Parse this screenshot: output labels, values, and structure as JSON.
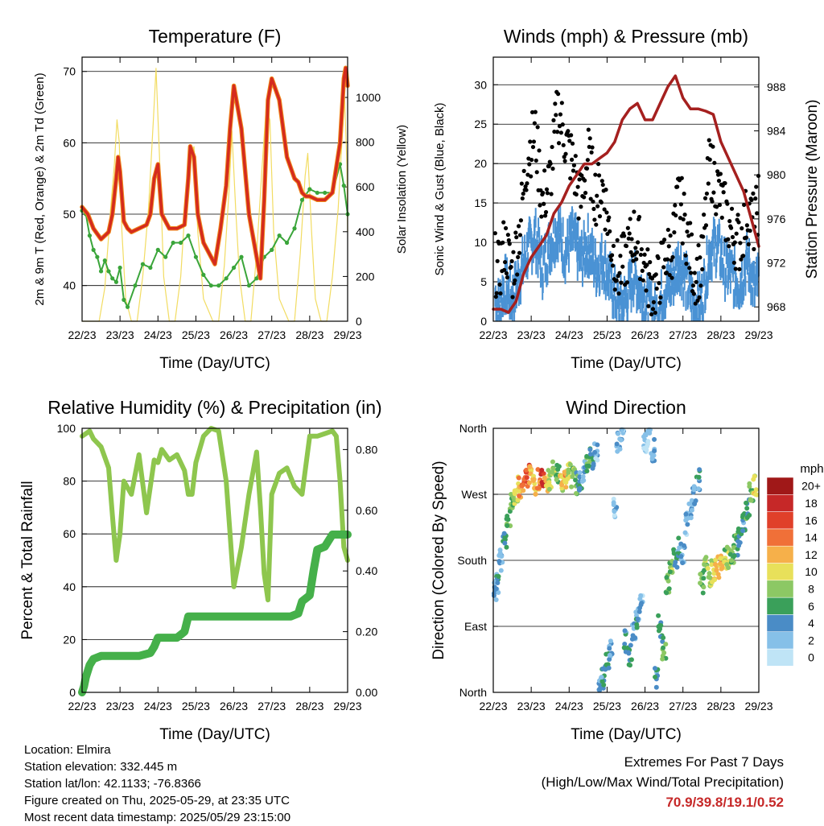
{
  "chart_data": [
    {
      "type": "line",
      "title": "Temperature (F)",
      "xlabel": "Time (Day/UTC)",
      "ylabel_left": "2m & 9m T (Red, Orange) & 2m Td (Green)",
      "ylabel_right": "Solar Insolation (Yellow)",
      "x_ticks": [
        "22/23",
        "23/23",
        "24/23",
        "25/23",
        "26/23",
        "27/23",
        "28/23",
        "29/23"
      ],
      "xlim": [
        0,
        7
      ],
      "ylim": [
        35,
        72
      ],
      "y_ticks": [
        40,
        50,
        60,
        70
      ],
      "y2lim": [
        0,
        1180
      ],
      "y2_ticks": [
        0,
        200,
        400,
        600,
        800,
        1000
      ],
      "grid": true,
      "colors": {
        "t2m": "#d42b1e",
        "t9m": "#f08a1c",
        "td": "#3aa53a",
        "solar": "#f2dc62"
      },
      "series": [
        {
          "key": "t2m",
          "x": [
            0,
            0.15,
            0.3,
            0.5,
            0.7,
            0.8,
            0.9,
            0.95,
            1,
            1.1,
            1.2,
            1.3,
            1.5,
            1.7,
            1.8,
            1.9,
            2,
            2.1,
            2.3,
            2.5,
            2.7,
            2.8,
            2.85,
            2.95,
            3.05,
            3.2,
            3.4,
            3.5,
            3.65,
            3.8,
            3.9,
            4,
            4.2,
            4.4,
            4.6,
            4.7,
            4.8,
            4.9,
            5,
            5.2,
            5.4,
            5.6,
            5.7,
            5.8,
            5.9,
            6,
            6.2,
            6.4,
            6.6,
            6.8,
            6.9,
            6.95,
            7
          ],
          "values": [
            51,
            50,
            48,
            46.5,
            47.5,
            50,
            55,
            58,
            56,
            49,
            48,
            47.5,
            48,
            48.5,
            50,
            55,
            57,
            50,
            48,
            48,
            48.5,
            55,
            59.5,
            58,
            50,
            46,
            44,
            43,
            48,
            54,
            62,
            68,
            62,
            50,
            44,
            41,
            52,
            66,
            69,
            66,
            58,
            55,
            54.5,
            53,
            52.5,
            52.5,
            52,
            52,
            53,
            60,
            69,
            70.5,
            68
          ]
        },
        {
          "key": "td",
          "x": [
            0,
            0.1,
            0.2,
            0.3,
            0.4,
            0.5,
            0.6,
            0.7,
            0.8,
            0.9,
            1,
            1.1,
            1.2,
            1.4,
            1.6,
            1.8,
            2,
            2.2,
            2.4,
            2.6,
            2.8,
            3,
            3.2,
            3.4,
            3.6,
            3.8,
            4,
            4.2,
            4.4,
            4.6,
            4.8,
            5,
            5.2,
            5.4,
            5.6,
            5.8,
            6,
            6.2,
            6.4,
            6.6,
            6.8,
            6.9,
            7
          ],
          "values": [
            50.5,
            50,
            47,
            45,
            44,
            42,
            43.5,
            42,
            41,
            40.5,
            42.5,
            38,
            37,
            40,
            43,
            42.5,
            45,
            44,
            46,
            46,
            47,
            44,
            41.5,
            40,
            40,
            41,
            42.5,
            44,
            40,
            41,
            44,
            45,
            47,
            46,
            48,
            52,
            53.5,
            53,
            53,
            53,
            57,
            54,
            50
          ]
        },
        {
          "key": "solar",
          "x": [
            0,
            0.45,
            0.6,
            0.75,
            0.85,
            0.92,
            0.98,
            1.05,
            1.15,
            1.3,
            1.45,
            1.6,
            1.75,
            1.88,
            1.95,
            2.05,
            2.15,
            2.3,
            2.45,
            2.6,
            2.75,
            2.85,
            2.95,
            3.05,
            3.2,
            3.45,
            3.6,
            3.75,
            3.88,
            3.95,
            4.05,
            4.15,
            4.3,
            4.45,
            4.6,
            4.75,
            4.85,
            4.95,
            5.05,
            5.2,
            5.45,
            5.6,
            5.75,
            5.88,
            5.95,
            6.05,
            6.15,
            6.3,
            6.45,
            6.6,
            6.75,
            6.85,
            6.92,
            6.98,
            7
          ],
          "values": [
            0,
            0,
            150,
            500,
            700,
            900,
            800,
            400,
            100,
            0,
            0,
            200,
            500,
            900,
            1130,
            700,
            200,
            0,
            0,
            200,
            600,
            750,
            780,
            400,
            100,
            0,
            0,
            250,
            600,
            850,
            500,
            200,
            0,
            0,
            300,
            700,
            950,
            900,
            400,
            100,
            0,
            0,
            300,
            650,
            750,
            400,
            100,
            0,
            0,
            200,
            500,
            800,
            1000,
            700,
            400
          ]
        }
      ]
    },
    {
      "type": "line",
      "title": "Winds (mph) & Pressure (mb)",
      "xlabel": "Time (Day/UTC)",
      "ylabel_left": "Sonic Wind & Gust (Blue, Black)",
      "ylabel_right": "Station Pressure (Maroon)",
      "x_ticks": [
        "22/23",
        "23/23",
        "24/23",
        "25/23",
        "26/23",
        "27/23",
        "28/23",
        "29/23"
      ],
      "xlim": [
        0,
        7
      ],
      "ylim": [
        0,
        33.5
      ],
      "y_ticks": [
        0,
        5,
        10,
        15,
        20,
        25,
        30
      ],
      "y2lim": [
        966.7,
        990.7
      ],
      "y2_ticks": [
        968,
        972,
        976,
        980,
        984,
        988
      ],
      "grid": true,
      "colors": {
        "wind": "#4a92d4",
        "gust": "#000000",
        "pressure": "#a5201f"
      },
      "series": [
        {
          "key": "wind",
          "x": [
            0,
            0.15,
            0.3,
            0.5,
            0.7,
            0.9,
            1.1,
            1.3,
            1.5,
            1.7,
            1.9,
            2.1,
            2.3,
            2.5,
            2.7,
            2.9,
            3.1,
            3.3,
            3.5,
            3.7,
            3.9,
            4.1,
            4.3,
            4.5,
            4.7,
            4.9,
            5.1,
            5.3,
            5.5,
            5.7,
            5.9,
            6.1,
            6.3,
            6.5,
            6.7,
            6.9,
            7
          ],
          "values": [
            5,
            3,
            6,
            4,
            7,
            10,
            12,
            8,
            11,
            13,
            10,
            12,
            9,
            11,
            8,
            9,
            6,
            3,
            4,
            7,
            5,
            3,
            2,
            5,
            6,
            9,
            6,
            3,
            4,
            10,
            11,
            8,
            7,
            6,
            9,
            5,
            7
          ]
        },
        {
          "key": "gust",
          "x": [
            0,
            0.15,
            0.3,
            0.5,
            0.7,
            0.9,
            1.1,
            1.3,
            1.5,
            1.7,
            1.9,
            2.1,
            2.3,
            2.5,
            2.7,
            2.9,
            3.1,
            3.3,
            3.5,
            3.7,
            3.9,
            4.1,
            4.3,
            4.5,
            4.7,
            4.9,
            5.1,
            5.3,
            5.5,
            5.7,
            5.9,
            6.1,
            6.3,
            6.5,
            6.7,
            6.9,
            7
          ],
          "values": [
            8,
            6,
            10,
            6,
            12,
            21,
            24,
            15,
            18,
            27,
            23,
            20,
            15,
            21,
            16,
            17,
            10,
            6,
            8,
            11,
            9,
            5,
            4,
            8,
            9,
            16,
            11,
            6,
            7,
            20,
            17,
            14,
            11,
            10,
            14,
            12,
            16
          ]
        },
        {
          "key": "pressure",
          "x": [
            0,
            0.2,
            0.4,
            0.6,
            0.8,
            1,
            1.2,
            1.4,
            1.6,
            1.8,
            2,
            2.2,
            2.4,
            2.6,
            2.8,
            3,
            3.2,
            3.4,
            3.6,
            3.8,
            4,
            4.2,
            4.4,
            4.6,
            4.8,
            5,
            5.2,
            5.4,
            5.6,
            5.8,
            6,
            6.2,
            6.4,
            6.6,
            6.8,
            7
          ],
          "values": [
            967.8,
            967.8,
            967.5,
            968.5,
            971,
            972.5,
            973.5,
            974.5,
            976.5,
            977.5,
            979,
            980,
            981,
            981,
            981.5,
            982,
            983,
            985,
            986,
            986.5,
            985,
            985,
            986.5,
            988,
            989,
            987,
            986,
            986,
            985.8,
            985.5,
            983,
            981.5,
            980,
            978.5,
            976,
            973.5
          ]
        }
      ]
    },
    {
      "type": "line",
      "title": "Relative Humidity (%) & Precipitation (in)",
      "xlabel": "Time (Day/UTC)",
      "ylabel_left": "Percent & Total Rainfall",
      "x_ticks": [
        "22/23",
        "23/23",
        "24/23",
        "25/23",
        "26/23",
        "27/23",
        "28/23",
        "29/23"
      ],
      "xlim": [
        0,
        7
      ],
      "ylim": [
        0,
        100
      ],
      "y_ticks": [
        0,
        20,
        40,
        60,
        80,
        100
      ],
      "y2lim": [
        0,
        0.87
      ],
      "y2_ticks": [
        "0.00",
        "0.20",
        "0.40",
        "0.60",
        "0.80"
      ],
      "grid": true,
      "colors": {
        "rh": "#8ec64e",
        "precip": "#45b04a"
      },
      "series": [
        {
          "key": "rh",
          "x": [
            0,
            0.1,
            0.2,
            0.3,
            0.5,
            0.7,
            0.8,
            0.9,
            1,
            1.1,
            1.3,
            1.5,
            1.7,
            1.9,
            2,
            2.1,
            2.3,
            2.5,
            2.7,
            2.8,
            2.9,
            3,
            3.2,
            3.4,
            3.6,
            3.8,
            3.9,
            4,
            4.2,
            4.4,
            4.6,
            4.7,
            4.8,
            4.9,
            5,
            5.2,
            5.4,
            5.6,
            5.8,
            6,
            6.2,
            6.4,
            6.6,
            6.7,
            6.8,
            6.9,
            7
          ],
          "values": [
            97,
            98,
            99,
            96,
            93,
            85,
            67,
            50,
            60,
            80,
            75,
            90,
            68,
            88,
            87,
            92,
            88,
            90,
            84,
            75,
            75,
            87,
            97,
            100,
            99,
            80,
            60,
            40,
            55,
            75,
            91,
            70,
            45,
            35,
            75,
            83,
            85,
            78,
            75,
            97,
            97,
            98,
            99,
            97,
            80,
            55,
            50
          ]
        },
        {
          "key": "precip",
          "x": [
            0,
            0.05,
            0.1,
            0.2,
            0.3,
            0.5,
            1,
            1.5,
            1.8,
            1.9,
            2,
            2.5,
            2.7,
            2.8,
            3,
            3.5,
            4,
            4.5,
            5,
            5.5,
            5.7,
            5.8,
            6,
            6.1,
            6.2,
            6.4,
            6.6,
            7
          ],
          "values": [
            0,
            0.02,
            0.05,
            0.09,
            0.11,
            0.12,
            0.12,
            0.12,
            0.13,
            0.15,
            0.18,
            0.18,
            0.2,
            0.25,
            0.25,
            0.25,
            0.25,
            0.25,
            0.25,
            0.25,
            0.26,
            0.3,
            0.32,
            0.4,
            0.47,
            0.48,
            0.52,
            0.52
          ]
        }
      ]
    },
    {
      "type": "scatter",
      "title": "Wind Direction",
      "xlabel": "Time (Day/UTC)",
      "ylabel_left": "Direction (Colored By Speed)",
      "x_ticks": [
        "22/23",
        "23/23",
        "24/23",
        "25/23",
        "26/23",
        "27/23",
        "28/23",
        "29/23"
      ],
      "xlim": [
        0,
        7
      ],
      "ylim": [
        0,
        360
      ],
      "y_tick_values": [
        0,
        90,
        180,
        270,
        360
      ],
      "y_tick_labels": [
        "North",
        "East",
        "South",
        "West",
        "North"
      ],
      "grid": true,
      "colorbar": {
        "title": "mph",
        "labels": [
          "0",
          "2",
          "4",
          "6",
          "8",
          "10",
          "12",
          "14",
          "16",
          "18",
          "20+"
        ],
        "colors": [
          "#bfe4f6",
          "#86c0e8",
          "#4a8cc6",
          "#3aa05a",
          "#8cc864",
          "#e8e05a",
          "#f6b04a",
          "#f07038",
          "#e0402a",
          "#c62828",
          "#a01818"
        ]
      },
      "series": [
        {
          "x": [
            0.05,
            0.1,
            0.2,
            0.3,
            0.4,
            0.5,
            0.6,
            0.7,
            0.8,
            0.9,
            1,
            1.1,
            1.2,
            1.3,
            1.4,
            1.5,
            1.6,
            1.7,
            1.8,
            1.9,
            2,
            2.1,
            2.2,
            2.3,
            2.4,
            2.5,
            2.6,
            2.7,
            2.8,
            2.9,
            3,
            3.1,
            3.2,
            3.3,
            3.4,
            3.5,
            3.6,
            3.7,
            3.8,
            3.9,
            4,
            4.1,
            4.2,
            4.3,
            4.4,
            4.5,
            4.6,
            4.7,
            4.8,
            4.9,
            5,
            5.1,
            5.2,
            5.3,
            5.4,
            5.5,
            5.6,
            5.7,
            5.8,
            5.9,
            6,
            6.1,
            6.2,
            6.3,
            6.4,
            6.5,
            6.6,
            6.7,
            6.8,
            6.9
          ],
          "directions": [
            140,
            150,
            180,
            210,
            240,
            260,
            270,
            280,
            290,
            295,
            300,
            285,
            290,
            295,
            280,
            290,
            300,
            295,
            285,
            290,
            300,
            295,
            285,
            290,
            300,
            310,
            320,
            330,
            10,
            20,
            40,
            60,
            250,
            340,
            350,
            70,
            50,
            80,
            100,
            120,
            340,
            350,
            330,
            20,
            90,
            60,
            150,
            170,
            180,
            200,
            190,
            230,
            250,
            270,
            290,
            150,
            170,
            160,
            165,
            170,
            175,
            180,
            185,
            190,
            200,
            210,
            230,
            250,
            270,
            280
          ],
          "speeds": [
            3,
            4,
            3,
            5,
            6,
            7,
            9,
            12,
            14,
            16,
            12,
            10,
            14,
            17,
            11,
            9,
            8,
            7,
            10,
            12,
            9,
            8,
            6,
            4,
            3,
            7,
            5,
            2,
            3,
            4,
            5,
            3,
            2,
            3,
            2,
            4,
            5,
            3,
            4,
            2,
            1,
            2,
            3,
            4,
            5,
            6,
            7,
            8,
            5,
            4,
            3,
            2,
            2,
            3,
            4,
            7,
            8,
            9,
            10,
            11,
            12,
            8,
            9,
            7,
            6,
            5,
            4,
            6,
            8,
            10
          ]
        }
      ]
    }
  ],
  "info": {
    "location": "Location: Elmira",
    "elevation": "Station elevation: 332.445 m",
    "latlon": "Station lat/lon: 42.1133; -76.8366",
    "created": "Figure created on Thu, 2025-05-29, at 23:35 UTC",
    "timestamp": "Most recent data timestamp: 2025/05/29 23:15:00"
  },
  "extremes": {
    "heading": "Extremes For Past 7 Days",
    "subheading": "(High/Low/Max Wind/Total Precipitation)",
    "values": "70.9/39.8/19.1/0.52"
  }
}
